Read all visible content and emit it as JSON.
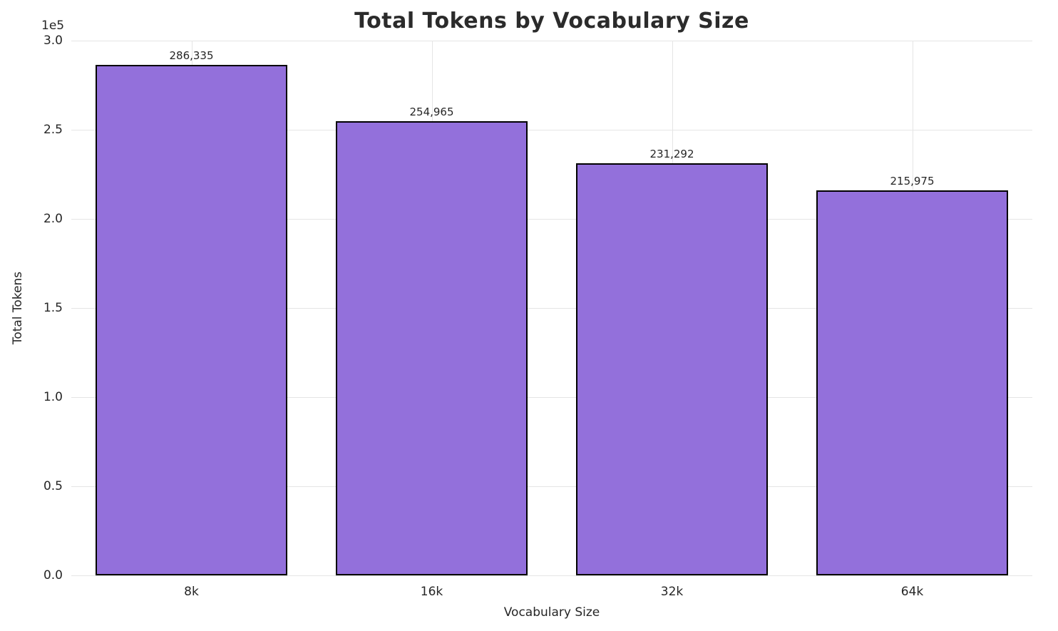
{
  "chart_data": {
    "type": "bar",
    "title": "Total Tokens by Vocabulary Size",
    "xlabel": "Vocabulary Size",
    "ylabel": "Total Tokens",
    "categories": [
      "8k",
      "16k",
      "32k",
      "64k"
    ],
    "values": [
      286335,
      254965,
      231292,
      215975
    ],
    "value_labels": [
      "286,335",
      "254,965",
      "231,292",
      "215,975"
    ],
    "ylim": [
      0,
      300000
    ],
    "yticks": [
      0,
      50000,
      100000,
      150000,
      200000,
      250000,
      300000
    ],
    "ytick_labels": [
      "0.0",
      "0.5",
      "1.0",
      "1.5",
      "2.0",
      "2.5",
      "3.0"
    ],
    "offset_text": "1e5",
    "bar_color": "#9370DB",
    "bar_edge_color": "#000000",
    "bar_width_fraction": 0.8,
    "grid": true,
    "legend_position": "none"
  }
}
